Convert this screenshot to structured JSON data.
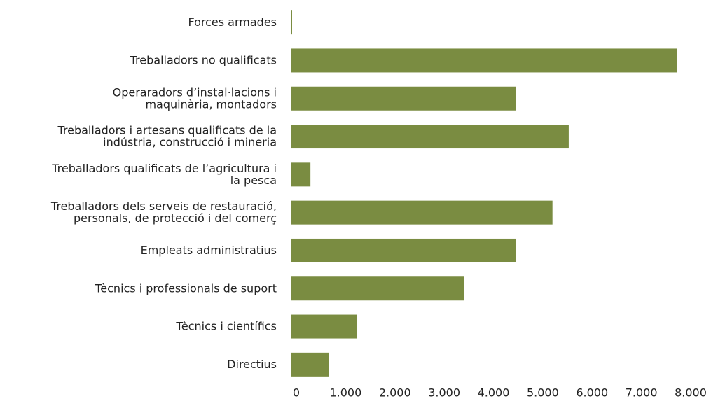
{
  "chart_data": {
    "type": "hbar",
    "categories": [
      "Forces armades",
      "Treballadors no qualificats",
      "Operaradors d’instal·lacions i\nmaquinària, montadors",
      "Treballadors i artesans qualificats de la\nindústria, construcció i mineria",
      "Treballadors qualificats de l’agricultura i\nla pesca",
      "Treballadors dels serveis de restauració,\npersonals, de protecció i del comerç",
      "Empleats administratius",
      "Tècnics i professionals de suport",
      "Tècnics i científics",
      "Directius"
    ],
    "values": [
      20,
      7840,
      4575,
      5640,
      400,
      5310,
      4575,
      3520,
      1350,
      770
    ],
    "color": "#7a8c41",
    "xlim": [
      0,
      8000
    ],
    "xticks": [
      0,
      {
        "value": 1000,
        "label": "1.000"
      },
      {
        "value": 2000,
        "label": "2.000"
      },
      {
        "value": 3000,
        "label": "3.000"
      },
      {
        "value": 4000,
        "label": "4.000"
      },
      {
        "value": 5000,
        "label": "5.000"
      },
      {
        "value": 6000,
        "label": "6.000"
      },
      {
        "value": 7000,
        "label": "7.000"
      },
      {
        "value": 8000,
        "label": "8.000"
      }
    ],
    "grid": false
  }
}
